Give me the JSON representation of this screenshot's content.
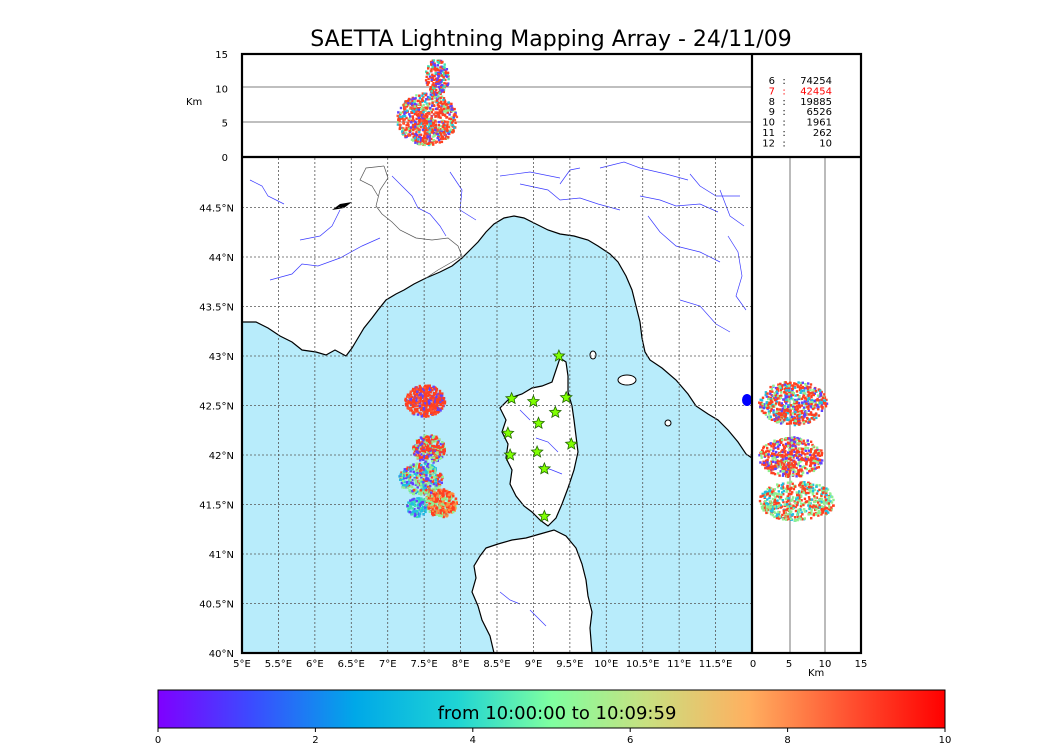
{
  "title": "SAETTA Lightning Mapping Array - 24/11/09",
  "map": {
    "lon_range": [
      5,
      12
    ],
    "lat_range": [
      40,
      45
    ],
    "lon_ticks": [
      {
        "value": 5,
        "label": "5°E"
      },
      {
        "value": 5.5,
        "label": "5.5°E"
      },
      {
        "value": 6,
        "label": "6°E"
      },
      {
        "value": 6.5,
        "label": "6.5°E"
      },
      {
        "value": 7,
        "label": "7°E"
      },
      {
        "value": 7.5,
        "label": "7.5°E"
      },
      {
        "value": 8,
        "label": "8°E"
      },
      {
        "value": 8.5,
        "label": "8.5°E"
      },
      {
        "value": 9,
        "label": "9°E"
      },
      {
        "value": 9.5,
        "label": "9.5°E"
      },
      {
        "value": 10,
        "label": "10°E"
      },
      {
        "value": 10.5,
        "label": "10.5°E"
      },
      {
        "value": 11,
        "label": "11°E"
      },
      {
        "value": 11.5,
        "label": "11.5°E"
      }
    ],
    "lat_ticks": [
      {
        "value": 40,
        "label": "40°N"
      },
      {
        "value": 40.5,
        "label": "40.5°N"
      },
      {
        "value": 41,
        "label": "41°N"
      },
      {
        "value": 41.5,
        "label": "41.5°N"
      },
      {
        "value": 42,
        "label": "42°N"
      },
      {
        "value": 42.5,
        "label": "42.5°N"
      },
      {
        "value": 43,
        "label": "43°N"
      },
      {
        "value": 43.5,
        "label": "43.5°N"
      },
      {
        "value": 44,
        "label": "44°N"
      },
      {
        "value": 44.5,
        "label": "44.5°N"
      }
    ],
    "stations": [
      {
        "lon": 9.35,
        "lat": 43.0
      },
      {
        "lon": 8.7,
        "lat": 42.57
      },
      {
        "lon": 9.0,
        "lat": 42.54
      },
      {
        "lon": 9.45,
        "lat": 42.58
      },
      {
        "lon": 9.3,
        "lat": 42.43
      },
      {
        "lon": 9.07,
        "lat": 42.32
      },
      {
        "lon": 8.65,
        "lat": 42.22
      },
      {
        "lon": 9.52,
        "lat": 42.11
      },
      {
        "lon": 8.68,
        "lat": 42.0
      },
      {
        "lon": 9.05,
        "lat": 42.03
      },
      {
        "lon": 9.15,
        "lat": 41.86
      },
      {
        "lon": 9.15,
        "lat": 41.38
      }
    ],
    "colors": {
      "sea": "#b8ecfb",
      "land": "#ffffff",
      "rivers": "#3b3bff",
      "grid": "#555555"
    }
  },
  "altitude_panel": {
    "ylabel": "Km",
    "ticks": [
      {
        "value": 0,
        "label": "0"
      },
      {
        "value": 5,
        "label": "5"
      },
      {
        "value": 10,
        "label": "10"
      },
      {
        "value": 15,
        "label": "15"
      }
    ]
  },
  "side_panel": {
    "xlabel": "Km",
    "ticks": [
      {
        "value": 0,
        "label": "0"
      },
      {
        "value": 5,
        "label": "5"
      },
      {
        "value": 10,
        "label": "10"
      },
      {
        "value": 15,
        "label": "15"
      }
    ]
  },
  "counts": [
    {
      "stations": "6",
      "sep": ":",
      "count": "74254",
      "color": "#000000"
    },
    {
      "stations": "7",
      "sep": ":",
      "count": "42454",
      "color": "#ff0000"
    },
    {
      "stations": "8",
      "sep": ":",
      "count": "19885",
      "color": "#000000"
    },
    {
      "stations": "9",
      "sep": ":",
      "count": "6526",
      "color": "#000000"
    },
    {
      "stations": "10",
      "sep": ":",
      "count": "1961",
      "color": "#000000"
    },
    {
      "stations": "11",
      "sep": ":",
      "count": "262",
      "color": "#000000"
    },
    {
      "stations": "12",
      "sep": ":",
      "count": "10",
      "color": "#000000"
    }
  ],
  "colorbar": {
    "label": "from 10:00:00 to 10:09:59",
    "range": [
      0,
      10
    ],
    "ticks": [
      {
        "value": 0,
        "label": "0"
      },
      {
        "value": 2,
        "label": "2"
      },
      {
        "value": 4,
        "label": "4"
      },
      {
        "value": 6,
        "label": "6"
      },
      {
        "value": 8,
        "label": "8"
      },
      {
        "value": 10,
        "label": "10"
      }
    ],
    "gradient": [
      "#7f00ff",
      "#3b4cff",
      "#00a8e8",
      "#1ed4d4",
      "#7fffa0",
      "#c8e080",
      "#ffb060",
      "#ff5030",
      "#ff0000"
    ]
  }
}
